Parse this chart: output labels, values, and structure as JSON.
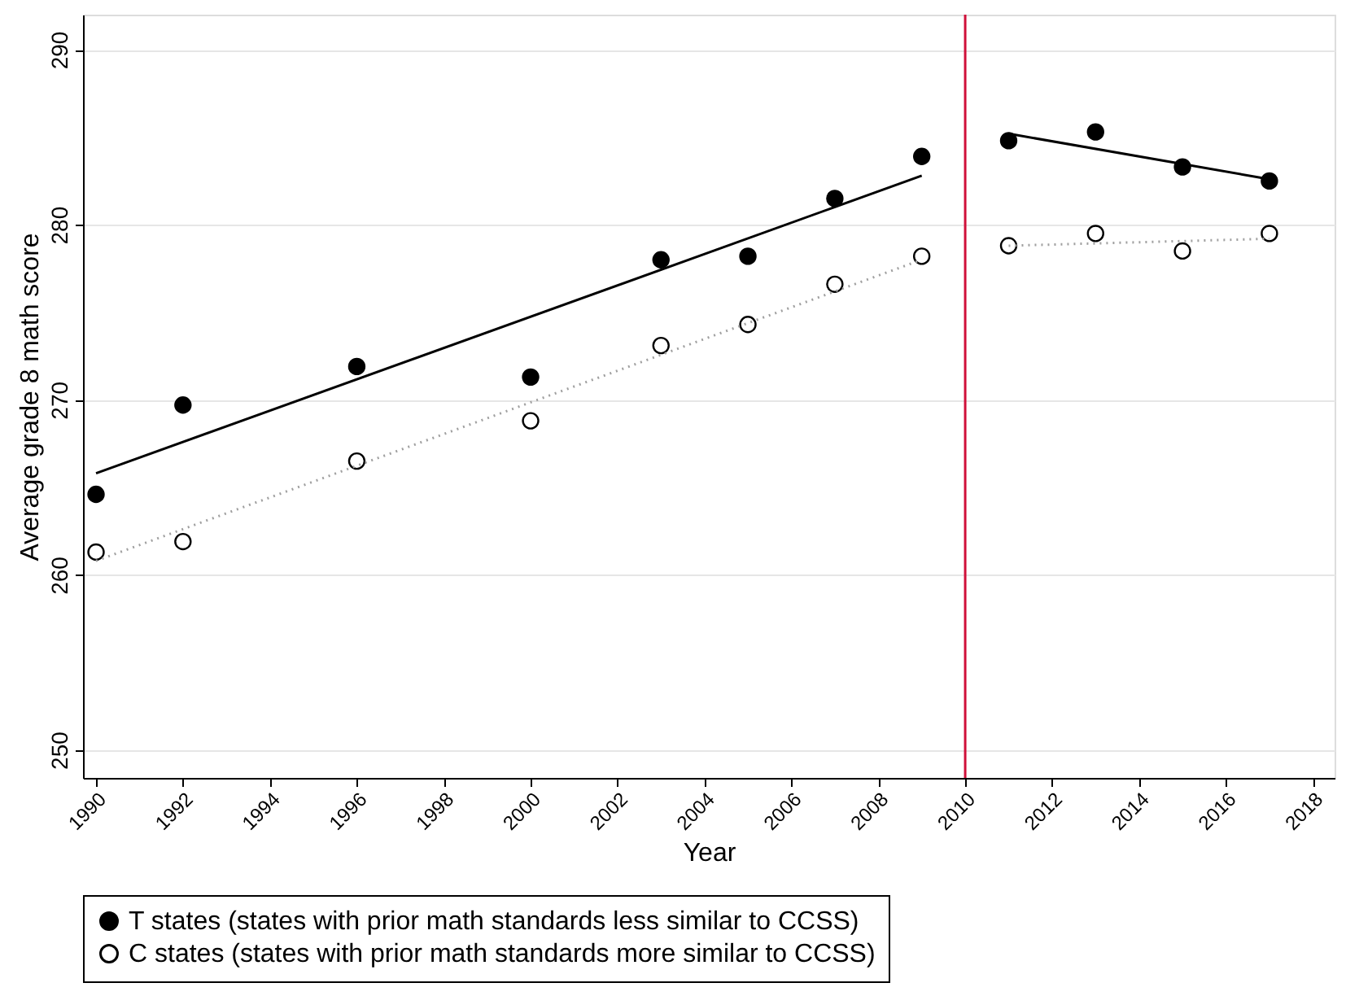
{
  "chart_data": {
    "type": "scatter",
    "xlabel": "Year",
    "ylabel": "Average grade 8 math score",
    "xlim": [
      1989.7,
      2018.5
    ],
    "ylim": [
      248.4,
      292
    ],
    "xticks": [
      1990,
      1992,
      1994,
      1996,
      1998,
      2000,
      2002,
      2004,
      2006,
      2008,
      2010,
      2012,
      2014,
      2016,
      2018
    ],
    "yticks": [
      250,
      260,
      270,
      280,
      290
    ],
    "grid": "y",
    "legend": "bottom",
    "ref_lines": [
      {
        "axis": "x",
        "value": 2010,
        "label": null,
        "color": "#d0103a"
      }
    ],
    "series": [
      {
        "name": "T states (states with prior math standards less similar to CCSS)",
        "marker": "circle",
        "color": "#000000",
        "x": [
          1990,
          1992,
          1996,
          2000,
          2003,
          2005,
          2007,
          2009,
          2011,
          2013,
          2015,
          2017
        ],
        "values": [
          264.6,
          269.7,
          271.9,
          271.3,
          278.0,
          278.2,
          281.5,
          283.9,
          284.8,
          285.3,
          283.3,
          282.5
        ]
      },
      {
        "name": "C states (states with prior math standards more similar to CCSS)",
        "marker": "circle",
        "color": "#ffffff",
        "x": [
          1990,
          1992,
          1996,
          2000,
          2003,
          2005,
          2007,
          2009,
          2011,
          2013,
          2015,
          2017
        ],
        "values": [
          261.3,
          261.9,
          266.5,
          268.8,
          273.1,
          274.3,
          276.6,
          278.2,
          278.8,
          279.5,
          278.5,
          279.5
        ]
      },
      {
        "type": "line",
        "marker": "none",
        "color": "#000000",
        "line_style": "solid",
        "x": [
          1990,
          2009
        ],
        "values": [
          265.8,
          282.8
        ]
      },
      {
        "type": "line",
        "marker": "none",
        "color": "#000000",
        "line_style": "solid",
        "x": [
          2011,
          2017
        ],
        "values": [
          285.2,
          282.6
        ]
      },
      {
        "type": "line",
        "marker": "none",
        "color": "#a0a0a0",
        "line_style": "dotted",
        "x": [
          1990,
          2009
        ],
        "values": [
          260.8,
          278.0
        ]
      },
      {
        "type": "line",
        "marker": "none",
        "color": "#a0a0a0",
        "line_style": "dotted",
        "x": [
          2011,
          2017
        ],
        "values": [
          278.8,
          279.2
        ]
      }
    ]
  }
}
